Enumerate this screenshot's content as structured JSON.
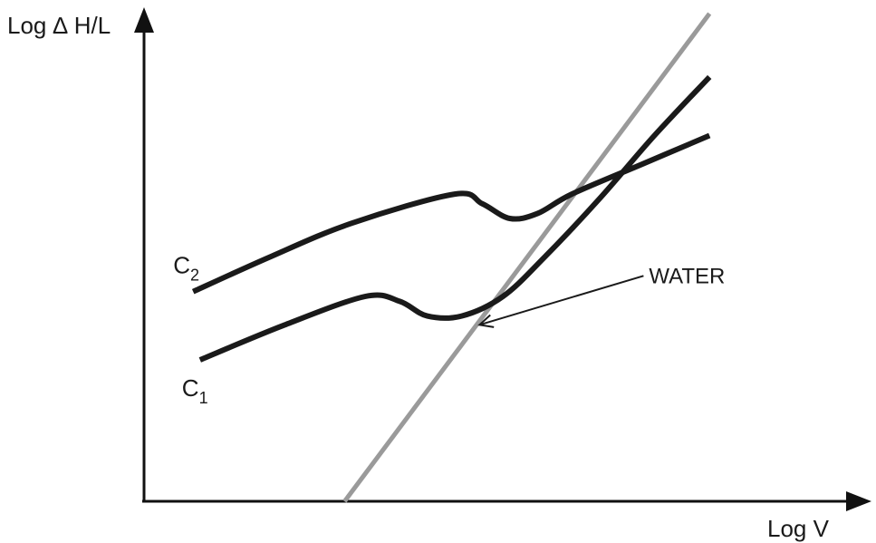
{
  "chart_data": {
    "type": "line",
    "title": "",
    "xlabel": "Log V",
    "ylabel": "Log ∆ H/L",
    "xlim": [
      0,
      10
    ],
    "ylim": [
      0,
      10
    ],
    "grid": false,
    "legend": "none",
    "scale": "log-log (qualitative, no ticks)",
    "series": [
      {
        "key": "water",
        "color": "#9a9a9a",
        "x": [
          2.9,
          8.2
        ],
        "y": [
          0.0,
          10.0
        ]
      },
      {
        "key": "c2",
        "color": "#1a1a1a",
        "x": [
          0.7,
          1.8,
          3.0,
          4.5,
          4.9,
          5.3,
          5.7,
          6.2,
          7.2,
          8.2
        ],
        "y": [
          4.3,
          5.0,
          5.7,
          6.3,
          6.1,
          5.8,
          5.9,
          6.3,
          6.9,
          7.5
        ]
      },
      {
        "key": "c1",
        "color": "#1a1a1a",
        "x": [
          0.8,
          2.0,
          3.2,
          3.7,
          4.1,
          4.6,
          5.2,
          5.8,
          6.6,
          7.4,
          8.2
        ],
        "y": [
          2.9,
          3.6,
          4.2,
          4.1,
          3.8,
          3.8,
          4.2,
          5.0,
          6.2,
          7.5,
          8.7
        ]
      }
    ],
    "curve_labels": [
      {
        "series": "c2",
        "main": "C",
        "sub": "2"
      },
      {
        "series": "c1",
        "main": "C",
        "sub": "1"
      }
    ],
    "annotations": [
      {
        "text": "WATER",
        "target_series": "water"
      }
    ]
  }
}
